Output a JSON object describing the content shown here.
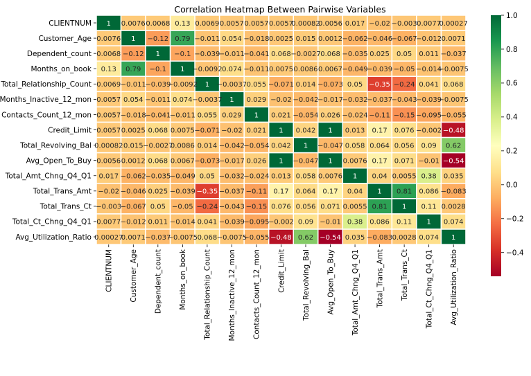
{
  "chart_data": {
    "type": "heatmap",
    "title": "Correlation Heatmap Between Pairwise Variables",
    "xlabel": "",
    "ylabel": "",
    "labels": [
      "CLIENTNUM",
      "Customer_Age",
      "Dependent_count",
      "Months_on_book",
      "Total_Relationship_Count",
      "Months_Inactive_12_mon",
      "Contacts_Count_12_mon",
      "Credit_Limit",
      "Total_Revolving_Bal",
      "Avg_Open_To_Buy",
      "Total_Amt_Chng_Q4_Q1",
      "Total_Trans_Amt",
      "Total_Trans_Ct",
      "Total_Ct_Chng_Q4_Q1",
      "Avg_Utilization_Ratio"
    ],
    "matrix": [
      [
        1,
        0.0076,
        0.0068,
        0.13,
        0.0069,
        0.0057,
        0.0057,
        0.0057,
        0.00082,
        0.0056,
        0.017,
        -0.02,
        -0.003,
        0.0077,
        0.00027
      ],
      [
        0.0076,
        1,
        -0.12,
        0.79,
        -0.011,
        0.054,
        -0.018,
        0.0025,
        0.015,
        0.0012,
        -0.062,
        -0.046,
        -0.067,
        -0.012,
        0.0071
      ],
      [
        0.0068,
        -0.12,
        1,
        -0.1,
        -0.039,
        -0.011,
        -0.041,
        0.068,
        -0.0027,
        0.068,
        -0.035,
        0.025,
        0.05,
        0.011,
        -0.037
      ],
      [
        0.13,
        0.79,
        -0.1,
        1,
        -0.0092,
        0.074,
        -0.011,
        0.0075,
        0.0086,
        0.0067,
        -0.049,
        -0.039,
        -0.05,
        -0.014,
        -0.0075
      ],
      [
        0.0069,
        -0.011,
        -0.039,
        -0.0092,
        1,
        -0.0037,
        0.055,
        -0.071,
        0.014,
        -0.073,
        0.05,
        -0.35,
        -0.24,
        0.041,
        0.068
      ],
      [
        0.0057,
        0.054,
        -0.011,
        0.074,
        -0.0037,
        1,
        0.029,
        -0.02,
        -0.042,
        -0.017,
        -0.032,
        -0.037,
        -0.043,
        -0.039,
        -0.0075
      ],
      [
        0.0057,
        -0.018,
        -0.041,
        -0.011,
        0.055,
        0.029,
        1,
        0.021,
        -0.054,
        0.026,
        -0.024,
        -0.11,
        -0.15,
        -0.095,
        -0.055
      ],
      [
        0.0057,
        0.0025,
        0.068,
        0.0075,
        -0.071,
        -0.02,
        0.021,
        1,
        0.042,
        1,
        0.013,
        0.17,
        0.076,
        -0.002,
        -0.48
      ],
      [
        0.00082,
        0.015,
        -0.0027,
        0.0086,
        0.014,
        -0.042,
        -0.054,
        0.042,
        1,
        -0.047,
        0.058,
        0.064,
        0.056,
        0.09,
        0.62
      ],
      [
        0.0056,
        0.0012,
        0.068,
        0.0067,
        -0.073,
        -0.017,
        0.026,
        1,
        -0.047,
        1,
        0.0076,
        0.17,
        0.071,
        -0.01,
        -0.54
      ],
      [
        0.017,
        -0.062,
        -0.035,
        -0.049,
        0.05,
        -0.032,
        -0.024,
        0.013,
        0.058,
        0.0076,
        1,
        0.04,
        0.0055,
        0.38,
        0.035
      ],
      [
        -0.02,
        -0.046,
        0.025,
        -0.039,
        -0.35,
        -0.037,
        -0.11,
        0.17,
        0.064,
        0.17,
        0.04,
        1,
        0.81,
        0.086,
        -0.083
      ],
      [
        -0.003,
        -0.067,
        0.05,
        -0.05,
        -0.24,
        -0.043,
        -0.15,
        0.076,
        0.056,
        0.071,
        0.0055,
        0.81,
        1,
        0.11,
        0.0028
      ],
      [
        0.0077,
        -0.012,
        0.011,
        -0.014,
        0.041,
        -0.039,
        -0.095,
        -0.002,
        0.09,
        -0.01,
        0.38,
        0.086,
        0.11,
        1,
        0.074
      ],
      [
        0.00027,
        0.0071,
        -0.037,
        -0.0075,
        0.068,
        -0.0075,
        -0.055,
        -0.48,
        0.62,
        -0.54,
        0.035,
        -0.083,
        0.0028,
        0.074,
        1
      ]
    ],
    "colormap": "RdYlGn",
    "colorbar_range": [
      -0.54,
      1.0
    ],
    "colorbar_ticks": [
      1.0,
      0.8,
      0.6,
      0.4,
      0.2,
      0.0,
      -0.2,
      -0.4
    ],
    "colorbar_tick_labels": [
      "1.0",
      "0.8",
      "0.6",
      "0.4",
      "0.2",
      "0.0",
      "−0.2",
      "−0.4"
    ],
    "annotations": "shown",
    "grid": false,
    "cell_border_color": "#ffffff"
  }
}
